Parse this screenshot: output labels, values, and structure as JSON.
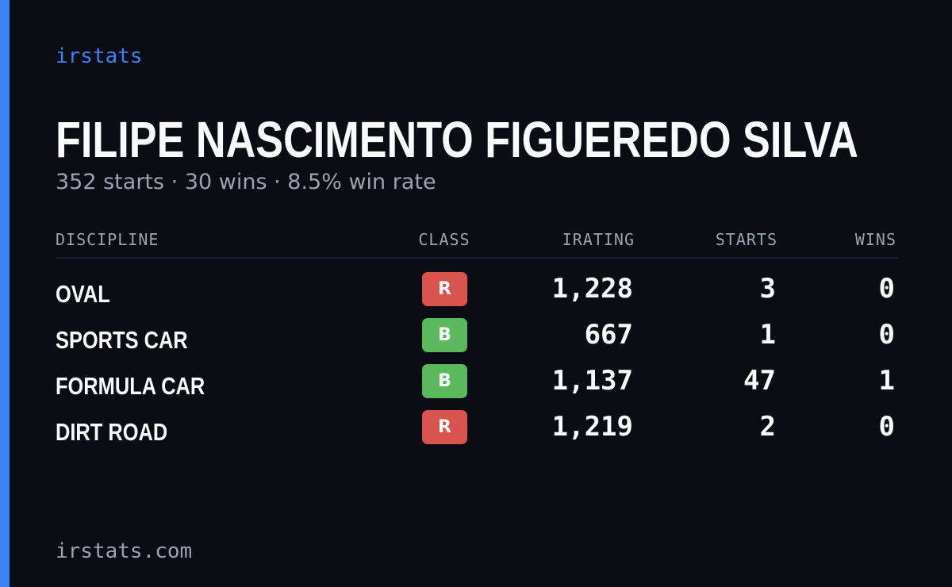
{
  "brand": "irstats",
  "title": "FILIPE NASCIMENTO FIGUEREDO SILVA",
  "subtitle": "352 starts · 30 wins · 8.5% win rate",
  "table": {
    "headers": [
      "DISCIPLINE",
      "CLASS",
      "IRATING",
      "STARTS",
      "WINS"
    ],
    "rows": [
      [
        "OVAL",
        "R",
        "1,228",
        "3",
        "0"
      ],
      [
        "SPORTS CAR",
        "B",
        "667",
        "1",
        "0"
      ],
      [
        "FORMULA CAR",
        "B",
        "1,137",
        "47",
        "1"
      ],
      [
        "DIRT ROAD",
        "R",
        "1,219",
        "2",
        "0"
      ]
    ]
  },
  "footer": "irstats.com"
}
